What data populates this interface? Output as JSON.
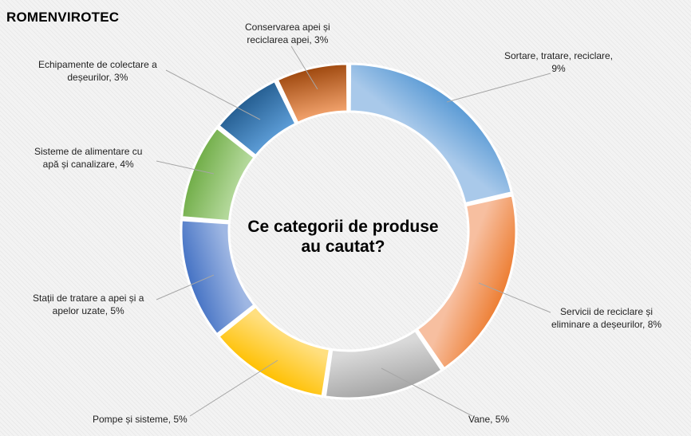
{
  "brand": "ROMENVIROTEC",
  "chart_data": {
    "type": "pie",
    "variant": "doughnut",
    "title_lines": [
      "Ce categorii de produse",
      "au cautat?"
    ],
    "labels_full": [
      [
        "Sortare, tratare, reciclare,",
        "9%"
      ],
      [
        "Servicii de reciclare și",
        "eliminare a deșeurilor, 8%"
      ],
      [
        "Vane, 5%"
      ],
      [
        "Pompe și sisteme, 5%"
      ],
      [
        "Stații de tratare a apei și a",
        "apelor uzate, 5%"
      ],
      [
        "Sisteme de alimentare cu",
        "apă și canalizare,  4%"
      ],
      [
        "Echipamente de colectare a",
        "deșeurilor, 3%"
      ],
      [
        "Conservarea apei și",
        "reciclarea apei, 3%"
      ]
    ],
    "categories": [
      "Sortare, tratare, reciclare",
      "Servicii de reciclare și eliminare a deșeurilor",
      "Vane",
      "Pompe și sisteme",
      "Stații de tratare a apei și a apelor uzate",
      "Sisteme de alimentare cu apă și canalizare",
      "Echipamente de colectare a deșeurilor",
      "Conservarea apei și reciclarea apei"
    ],
    "values": [
      9,
      8,
      5,
      5,
      5,
      4,
      3,
      3
    ],
    "value_unit": "%",
    "colors": [
      [
        "#5b9bd5",
        "#a9c9ea"
      ],
      [
        "#ed7d31",
        "#f7bfa0"
      ],
      [
        "#a5a5a5",
        "#d9d9d9"
      ],
      [
        "#ffc000",
        "#ffdf7f"
      ],
      [
        "#4472c4",
        "#9fb7e3"
      ],
      [
        "#70ad47",
        "#b3d89a"
      ],
      [
        "#255e91",
        "#5b9bd5"
      ],
      [
        "#9e480e",
        "#f0a06a"
      ]
    ],
    "legend": "none"
  }
}
